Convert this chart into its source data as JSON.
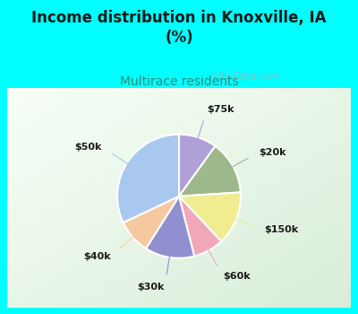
{
  "title": "Income distribution in Knoxville, IA\n(%)",
  "subtitle": "Multirace residents",
  "title_color": "#1a1a1a",
  "subtitle_color": "#2e8b7a",
  "background_top": "#00ffff",
  "labels": [
    "$75k",
    "$20k",
    "$150k",
    "$60k",
    "$30k",
    "$40k",
    "$50k"
  ],
  "sizes": [
    10,
    14,
    14,
    8,
    13,
    9,
    32
  ],
  "colors": [
    "#b0a0d8",
    "#9db88a",
    "#f0ed90",
    "#f0a8b8",
    "#9090d0",
    "#f5c8a0",
    "#a8c8f0"
  ],
  "startangle": 90,
  "watermark": "City-Data.com"
}
